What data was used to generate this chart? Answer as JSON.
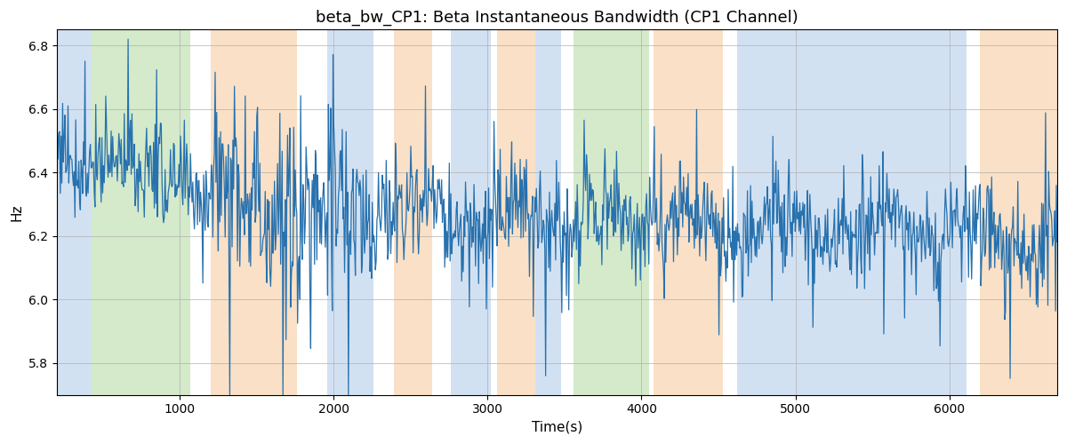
{
  "title": "beta_bw_CP1: Beta Instantaneous Bandwidth (CP1 Channel)",
  "xlabel": "Time(s)",
  "ylabel": "Hz",
  "xlim": [
    200,
    6700
  ],
  "ylim": [
    5.7,
    6.85
  ],
  "line_color": "#2771ae",
  "line_width": 0.9,
  "background_color": "#ffffff",
  "grid_color": "#b0b0b0",
  "bands": [
    {
      "xmin": 200,
      "xmax": 430,
      "color": "#adc9e8",
      "alpha": 0.55
    },
    {
      "xmin": 430,
      "xmax": 1070,
      "color": "#b2d9a0",
      "alpha": 0.55
    },
    {
      "xmin": 1200,
      "xmax": 1760,
      "color": "#f5c898",
      "alpha": 0.55
    },
    {
      "xmin": 1960,
      "xmax": 2260,
      "color": "#adc9e8",
      "alpha": 0.55
    },
    {
      "xmin": 2390,
      "xmax": 2640,
      "color": "#f5c898",
      "alpha": 0.55
    },
    {
      "xmin": 2760,
      "xmax": 3020,
      "color": "#adc9e8",
      "alpha": 0.55
    },
    {
      "xmin": 3060,
      "xmax": 3310,
      "color": "#f5c898",
      "alpha": 0.55
    },
    {
      "xmin": 3310,
      "xmax": 3480,
      "color": "#adc9e8",
      "alpha": 0.55
    },
    {
      "xmin": 3560,
      "xmax": 4050,
      "color": "#b2d9a0",
      "alpha": 0.55
    },
    {
      "xmin": 4080,
      "xmax": 4530,
      "color": "#f5c898",
      "alpha": 0.55
    },
    {
      "xmin": 4620,
      "xmax": 6110,
      "color": "#adc9e8",
      "alpha": 0.55
    },
    {
      "xmin": 6200,
      "xmax": 6700,
      "color": "#f5c898",
      "alpha": 0.55
    }
  ],
  "seed": 77,
  "n_points": 1300,
  "t_start": 200,
  "t_end": 6700,
  "title_fontsize": 13
}
